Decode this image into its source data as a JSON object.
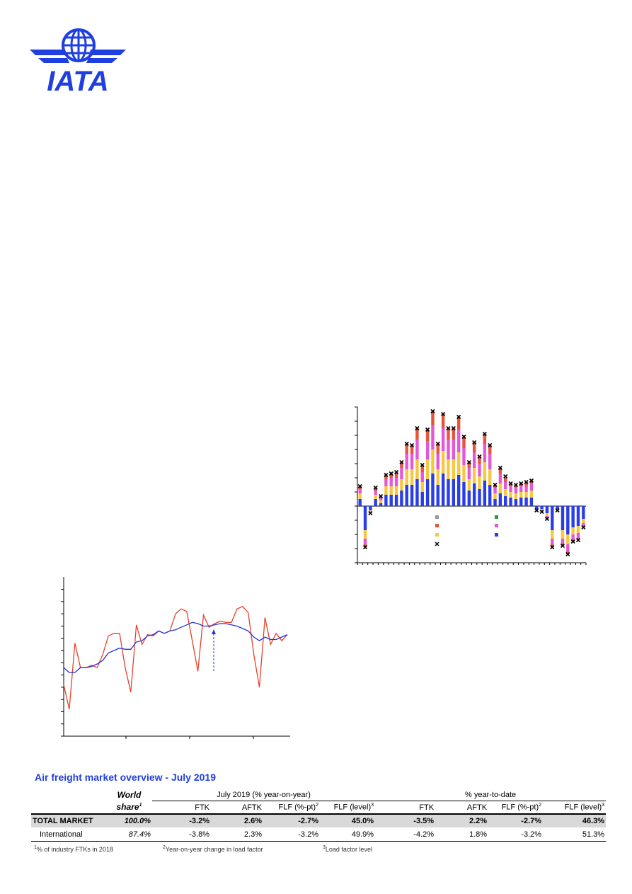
{
  "header": {
    "logo": "IATA"
  },
  "chart_data": [
    {
      "type": "bar",
      "stacked": true,
      "ylim": [
        -4,
        7
      ],
      "yticks": [
        -4,
        -3,
        -2,
        -1,
        0,
        1,
        2,
        3,
        4,
        5,
        6,
        7
      ],
      "series": [
        {
          "color": "#2a3ee8",
          "values": [
            0.5,
            -1.7,
            -0.3,
            0.5,
            0.2,
            0.8,
            0.8,
            0.8,
            1.1,
            1.5,
            1.5,
            1.9,
            1.0,
            1.9,
            2.3,
            1.5,
            2.3,
            1.9,
            1.9,
            2.2,
            1.7,
            1.1,
            1.6,
            1.2,
            1.8,
            1.5,
            0.5,
            0.9,
            0.7,
            0.6,
            0.5,
            0.6,
            0.6,
            0.6,
            -0.2,
            -0.2,
            -0.5,
            -1.7,
            -0.2,
            -1.7,
            -2.0,
            -1.5,
            -1.4,
            -0.9
          ]
        },
        {
          "color": "#f5c842",
          "values": [
            0.4,
            -0.6,
            -0.1,
            0.3,
            0.2,
            0.6,
            0.6,
            0.6,
            0.8,
            1.1,
            1.1,
            1.4,
            0.7,
            1.4,
            1.7,
            1.1,
            1.6,
            1.4,
            1.4,
            1.6,
            1.2,
            0.8,
            1.1,
            0.9,
            1.3,
            1.1,
            0.4,
            0.7,
            0.5,
            0.4,
            0.4,
            0.4,
            0.4,
            0.5,
            -0.1,
            -0.1,
            -0.2,
            -0.6,
            -0.1,
            -0.6,
            -0.7,
            -0.5,
            -0.5,
            -0.3
          ]
        },
        {
          "color": "#e557d6",
          "values": [
            0.3,
            -0.4,
            -0.1,
            0.3,
            0.2,
            0.5,
            0.6,
            0.6,
            0.8,
            1.1,
            1.1,
            1.4,
            0.7,
            1.3,
            1.7,
            1.1,
            1.6,
            1.4,
            1.4,
            1.6,
            1.2,
            0.8,
            1.1,
            0.9,
            1.3,
            1.1,
            0.4,
            0.7,
            0.5,
            0.4,
            0.4,
            0.4,
            0.4,
            0.5,
            0,
            -0.1,
            -0.1,
            -0.4,
            0,
            -0.4,
            -0.5,
            -0.4,
            -0.4,
            -0.2
          ]
        },
        {
          "color": "#e8533a",
          "values": [
            0.2,
            -0.2,
            0,
            0.2,
            0.1,
            0.3,
            0.3,
            0.4,
            0.4,
            0.7,
            0.6,
            0.8,
            0.5,
            0.8,
            1.0,
            0.7,
            1.0,
            0.8,
            0.8,
            0.9,
            0.8,
            0.4,
            0.7,
            0.5,
            0.7,
            0.6,
            0.2,
            0.4,
            0.3,
            0.2,
            0.2,
            0.2,
            0.3,
            0.2,
            0,
            0,
            -0.1,
            -0.2,
            0,
            -0.1,
            -0.2,
            -0.1,
            -0.1,
            -0.1
          ]
        }
      ],
      "totals": {
        "color": "#000000",
        "values": [
          1.4,
          -2.9,
          -0.5,
          1.3,
          0.7,
          2.2,
          2.3,
          2.4,
          3.1,
          4.4,
          4.3,
          5.5,
          2.9,
          5.4,
          6.7,
          4.4,
          6.5,
          5.5,
          5.5,
          6.3,
          4.9,
          3.1,
          4.5,
          3.5,
          5.1,
          4.3,
          1.5,
          2.7,
          2.1,
          1.6,
          1.5,
          1.6,
          1.7,
          1.8,
          -0.3,
          -0.4,
          -0.9,
          -2.9,
          -0.3,
          -2.8,
          -3.4,
          -2.5,
          -2.4,
          -1.5
        ]
      }
    },
    {
      "type": "line",
      "ylim": [
        0,
        12.5
      ],
      "yticks": [
        0,
        1,
        2,
        3,
        4,
        5,
        6,
        7,
        8,
        9,
        10,
        11,
        12
      ],
      "series": [
        {
          "color": "#e8402a",
          "values": [
            4.2,
            2.2,
            7.6,
            5.6,
            5.6,
            5.8,
            5.6,
            6.7,
            8.2,
            8.4,
            8.4,
            5.6,
            3.6,
            9.1,
            7.5,
            8.3,
            8.2,
            8.6,
            8.4,
            8.6,
            10.0,
            10.4,
            10.2,
            7.8,
            5.3,
            9.9,
            8.9,
            9.2,
            9.4,
            9.3,
            9.3,
            10.4,
            10.6,
            10.1,
            6.7,
            4.0,
            9.7,
            7.5,
            8.4,
            7.8,
            8.3
          ]
        },
        {
          "color": "#2233e0",
          "values": [
            5.6,
            5.2,
            5.2,
            5.6,
            5.6,
            5.7,
            5.9,
            6.2,
            6.8,
            7.0,
            7.2,
            7.1,
            7.1,
            7.7,
            7.8,
            8.2,
            8.3,
            8.6,
            8.4,
            8.6,
            8.7,
            8.9,
            9.1,
            9.3,
            9.2,
            9.0,
            9.0,
            9.1,
            9.2,
            9.2,
            9.1,
            9.0,
            8.8,
            8.6,
            8.1,
            7.8,
            8.1,
            7.9,
            7.9,
            8.1,
            8.3
          ]
        }
      ]
    }
  ],
  "table": {
    "title": "Air freight market overview - July 2019",
    "world_share": {
      "line1": "World",
      "line2": "share",
      "sup": "1"
    },
    "group1": "July 2019 (% year-on-year)",
    "group2": "% year-to-date",
    "columns": [
      {
        "text": "FTK"
      },
      {
        "text": "AFTK"
      },
      {
        "text": "FLF (%-pt)",
        "sup": "2"
      },
      {
        "text": "FLF (level)",
        "sup": "3"
      },
      {
        "text": "FTK"
      },
      {
        "text": "AFTK"
      },
      {
        "text": "FLF (%-pt)",
        "sup": "2"
      },
      {
        "text": "FLF (level)",
        "sup": "3"
      }
    ],
    "rows": [
      [
        "TOTAL MARKET",
        "100.0%",
        "-3.2%",
        "2.6%",
        "-2.7%",
        "45.0%",
        "-3.5%",
        "2.2%",
        "-2.7%",
        "46.3%"
      ],
      [
        "International",
        "87.4%",
        "-3.8%",
        "2.3%",
        "-3.2%",
        "49.9%",
        "-4.2%",
        "1.8%",
        "-3.2%",
        "51.3%"
      ]
    ]
  },
  "footnotes": [
    {
      "sup": "1",
      "text": "% of industry FTKs in 2018"
    },
    {
      "sup": "2",
      "text": "Year-on-year change in load factor"
    },
    {
      "sup": "3",
      "text": "Load factor level"
    }
  ]
}
